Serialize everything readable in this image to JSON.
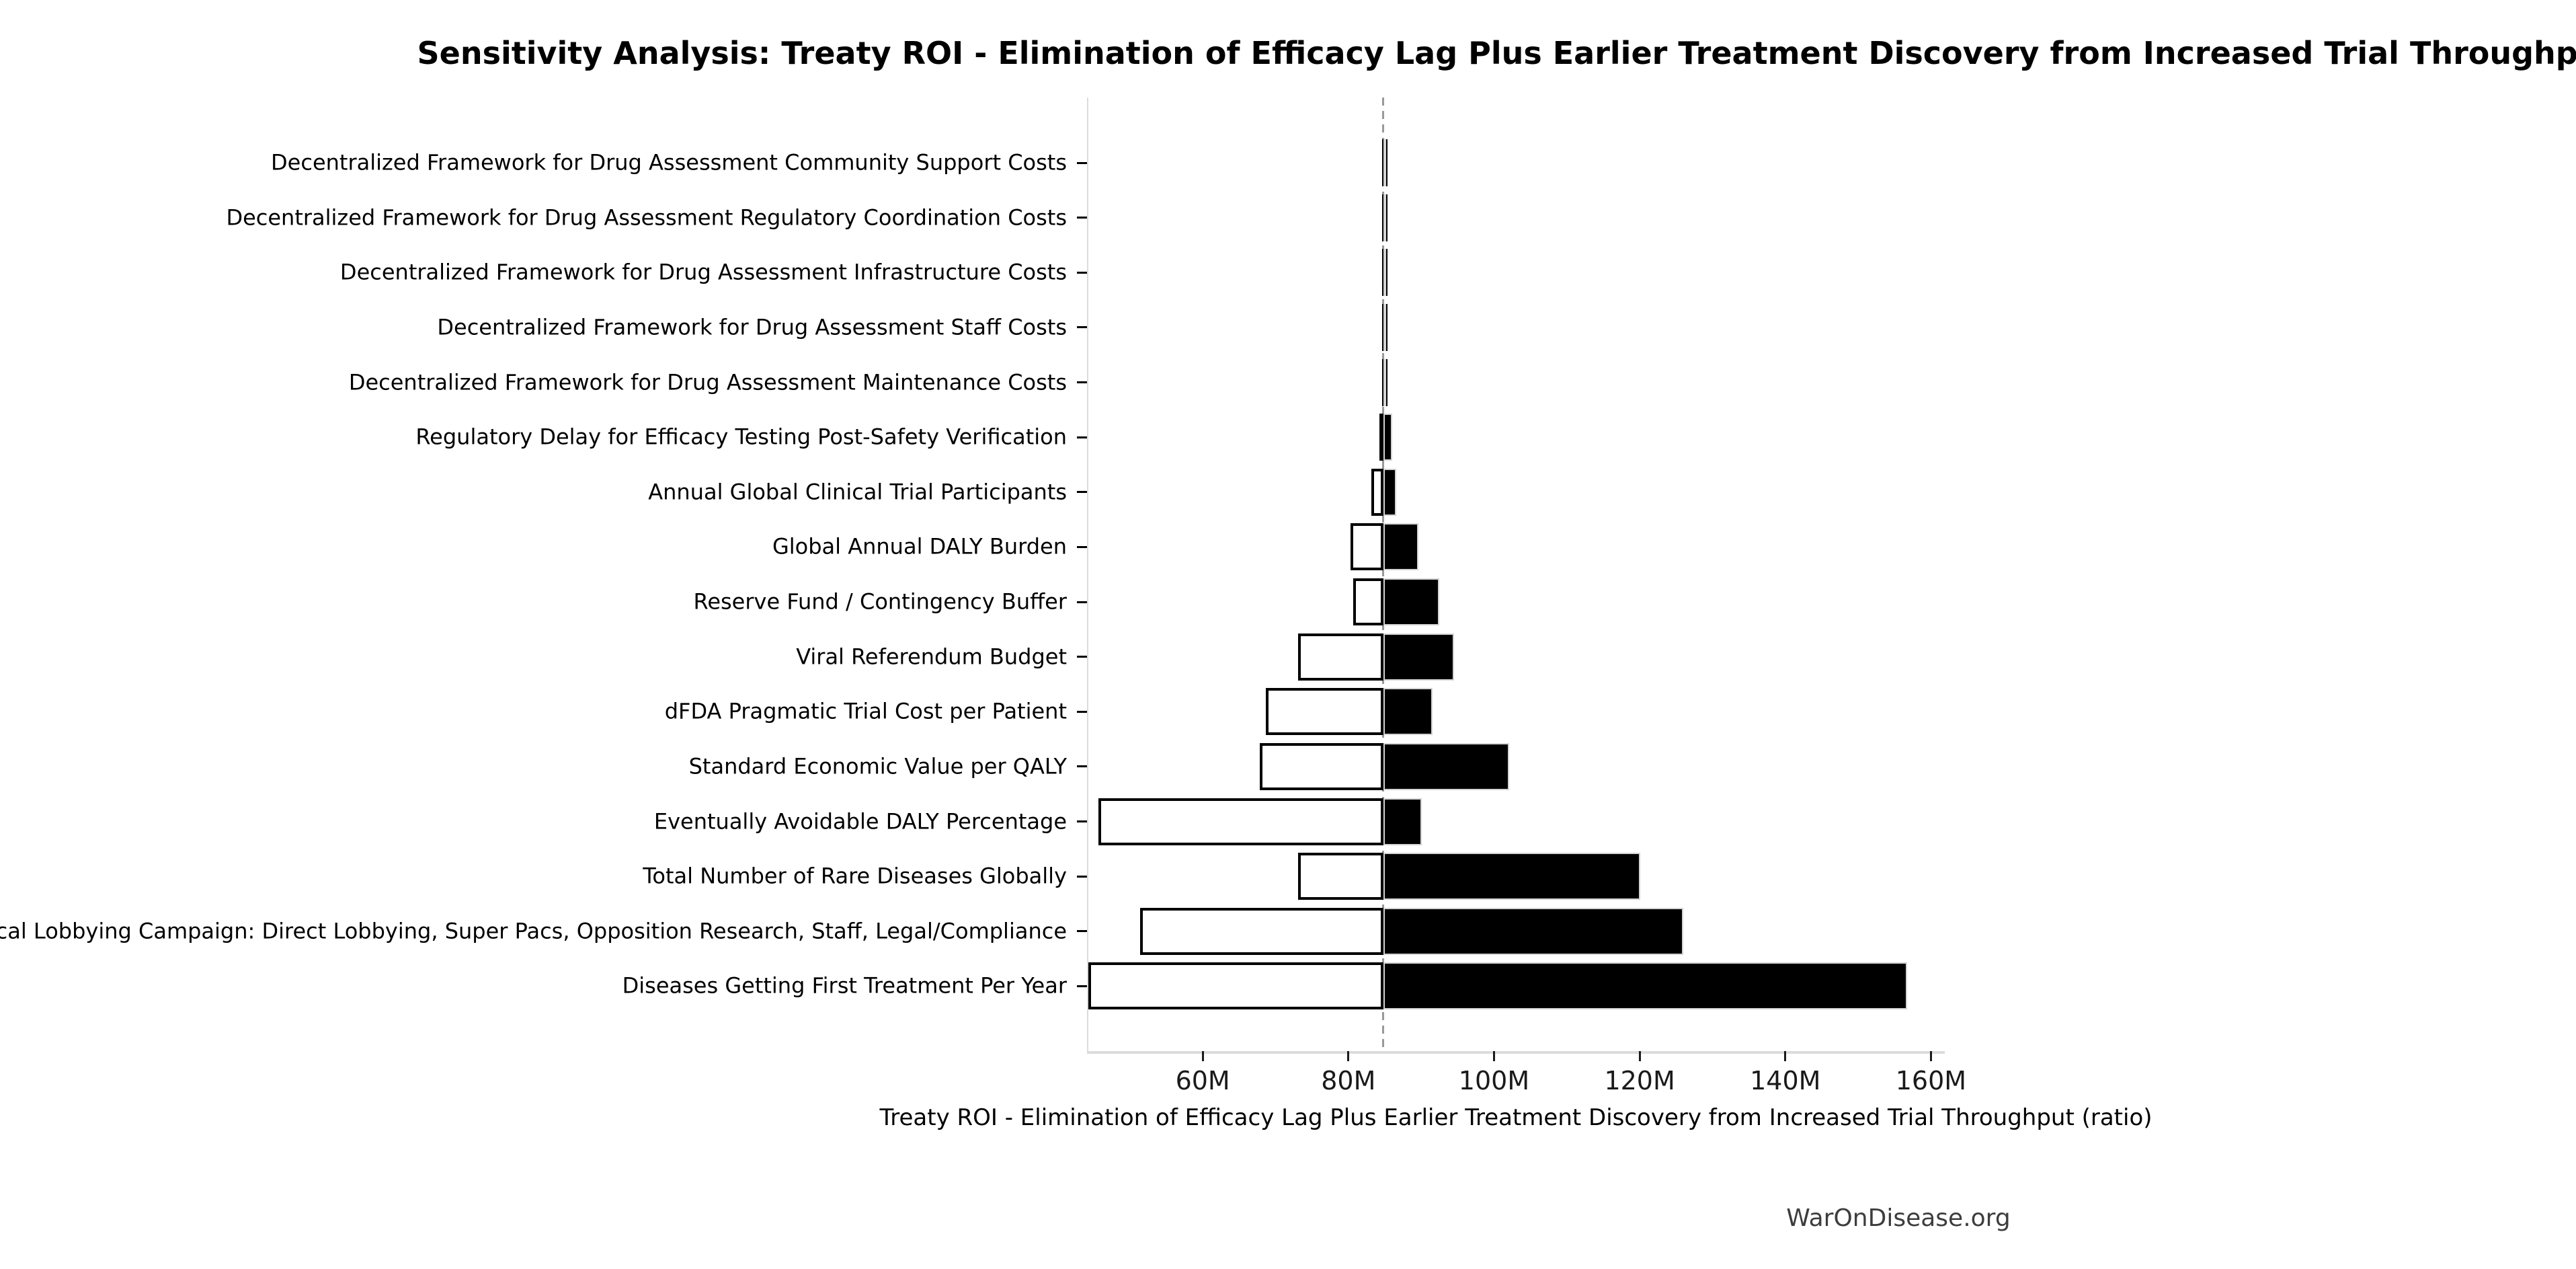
{
  "title": "Sensitivity Analysis: Treaty ROI - Elimination of Efficacy Lag Plus Earlier Treatment Discovery from Increased Trial Throughput",
  "footer": "WarOnDisease.org",
  "colors": {
    "background": "#ffffff",
    "bar_high_fill": "#000000",
    "bar_high_edge": "#d3d3d3",
    "bar_low_fill": "#ffffff",
    "bar_low_edge": "#000000",
    "baseline_dash": "#999999",
    "axis_spine": "#dcdcdc",
    "tick_label": "#1a1a1a",
    "footer_text": "#3d3d3d"
  },
  "chart_data": {
    "type": "bar",
    "subtype": "tornado-sensitivity",
    "orientation": "horizontal",
    "title": "Sensitivity Analysis: Treaty ROI - Elimination of Efficacy Lag Plus Earlier Treatment Discovery from Increased Trial Throughput",
    "xlabel": "Treaty ROI - Elimination of Efficacy Lag Plus Earlier Treatment Discovery from Increased Trial Throughput (ratio)",
    "unit": "M",
    "baseline": 84.8,
    "xlim": [
      44.2,
      161.9
    ],
    "grid": false,
    "legend": false,
    "x_ticks": [
      {
        "value": 60,
        "label": "60M"
      },
      {
        "value": 80,
        "label": "80M"
      },
      {
        "value": 100,
        "label": "100M"
      },
      {
        "value": 120,
        "label": "120M"
      },
      {
        "value": 140,
        "label": "140M"
      },
      {
        "value": 160,
        "label": "160M"
      }
    ],
    "categories": [
      "Decentralized Framework for Drug Assessment Community Support Costs",
      "Decentralized Framework for Drug Assessment Regulatory Coordination Costs",
      "Decentralized Framework for Drug Assessment Infrastructure Costs",
      "Decentralized Framework for Drug Assessment Staff Costs",
      "Decentralized Framework for Drug Assessment Maintenance Costs",
      "Regulatory Delay for Efficacy Testing Post-Safety Verification",
      "Annual Global Clinical Trial Participants",
      "Global Annual DALY Burden",
      "Reserve Fund / Contingency Buffer",
      "Viral Referendum Budget",
      "dFDA Pragmatic Trial Cost per Patient",
      "Standard Economic Value per QALY",
      "Eventually Avoidable DALY Percentage",
      "Total Number of Rare Diseases Globally",
      "Political Lobbying Campaign: Direct Lobbying, Super Pacs, Opposition Research, Staff, Legal/Compliance",
      "Diseases Getting First Treatment Per Year"
    ],
    "series": [
      {
        "name": "low_estimate",
        "fill": "#ffffff",
        "values": [
          84.65,
          84.65,
          84.6,
          84.6,
          84.6,
          84.3,
          83.2,
          80.3,
          80.7,
          73.1,
          68.7,
          67.8,
          45.7,
          73.1,
          51.4,
          44.3
        ]
      },
      {
        "name": "high_estimate",
        "fill": "#000000",
        "values": [
          85.15,
          85.15,
          85.2,
          85.2,
          85.2,
          86.0,
          86.6,
          89.6,
          92.5,
          94.5,
          91.6,
          102.1,
          90.1,
          120.1,
          126.0,
          156.7
        ]
      }
    ]
  }
}
